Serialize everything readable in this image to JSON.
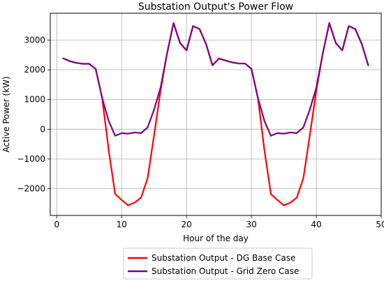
{
  "chart_data": {
    "type": "line",
    "title": "Substation Output's Power Flow",
    "xlabel": "Hour of the day",
    "ylabel": "Active Power (kW)",
    "xlim": [
      -1,
      50
    ],
    "ylim": [
      -2900,
      3900
    ],
    "xticks": [
      0,
      10,
      20,
      30,
      40,
      50
    ],
    "yticks": [
      -2000,
      -1000,
      0,
      1000,
      2000,
      3000
    ],
    "xtick_labels": [
      "0",
      "10",
      "20",
      "30",
      "40",
      "50"
    ],
    "ytick_labels": [
      "−2000",
      "−1000",
      "0",
      "1000",
      "2000",
      "3000"
    ],
    "grid": true,
    "legend_position": "bottom-center outside",
    "x": [
      1,
      2,
      3,
      4,
      5,
      6,
      7,
      8,
      9,
      10,
      11,
      12,
      13,
      14,
      15,
      16,
      17,
      18,
      19,
      20,
      21,
      22,
      23,
      24,
      25,
      26,
      27,
      28,
      29,
      30,
      31,
      32,
      33,
      34,
      35,
      36,
      37,
      38,
      39,
      40,
      41,
      42,
      43,
      44,
      45,
      46,
      47,
      48
    ],
    "series": [
      {
        "name": "Substation Output - DG Base Case",
        "color": "#ff0000",
        "values": [
          2380,
          2290,
          2230,
          2200,
          2200,
          2030,
          1050,
          -700,
          -2180,
          -2380,
          -2560,
          -2470,
          -2300,
          -1650,
          -200,
          1300,
          2550,
          3570,
          2900,
          2650,
          3470,
          3370,
          2870,
          2150,
          2380,
          2310,
          2250,
          2210,
          2210,
          2030,
          1050,
          -700,
          -2180,
          -2380,
          -2560,
          -2470,
          -2300,
          -1650,
          -200,
          1300,
          2550,
          3570,
          2900,
          2650,
          3470,
          3370,
          2870,
          2150
        ]
      },
      {
        "name": "Substation Output - Grid Zero Case",
        "color": "#800080",
        "values": [
          2380,
          2290,
          2230,
          2200,
          2200,
          2030,
          1050,
          280,
          -220,
          -130,
          -150,
          -110,
          -130,
          60,
          660,
          1400,
          2550,
          3570,
          2900,
          2650,
          3470,
          3370,
          2870,
          2150,
          2380,
          2310,
          2250,
          2210,
          2210,
          2030,
          1050,
          280,
          -220,
          -130,
          -150,
          -110,
          -130,
          60,
          660,
          1400,
          2550,
          3570,
          2900,
          2650,
          3470,
          3370,
          2870,
          2150
        ]
      }
    ]
  }
}
